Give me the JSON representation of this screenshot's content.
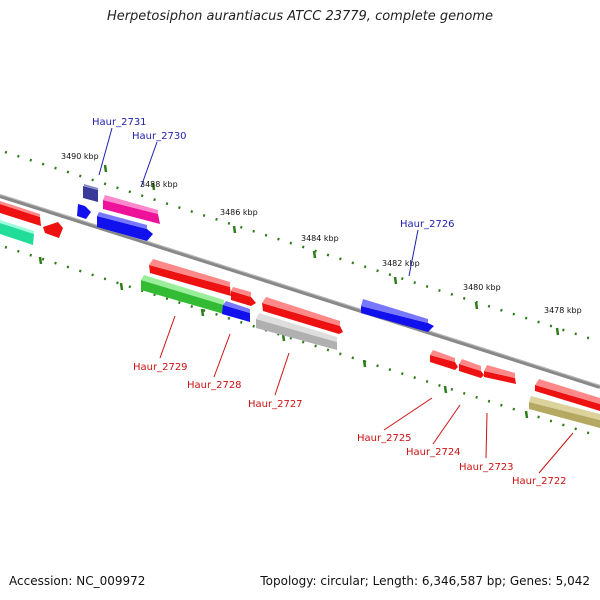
{
  "title": "Herpetosiphon aurantiacus ATCC 23779, complete genome",
  "footer": {
    "accession": "Accession: NC_009972",
    "topology": "Topology: circular; Length: 6,346,587 bp; Genes: 5,042"
  },
  "colors": {
    "backbone": "#808080",
    "tick": "#2e7d1a",
    "label_top": "#1f1fb0",
    "label_bottom": "#cc1111"
  },
  "position_labels": [
    "3490 kbp",
    "3488 kbp",
    "3486 kbp",
    "3484 kbp",
    "3482 kbp",
    "3480 kbp",
    "3478 kbp"
  ],
  "gene_labels_top": [
    "Haur_2731",
    "Haur_2730",
    "Haur_2726"
  ],
  "gene_labels_bottom": [
    "Haur_2729",
    "Haur_2728",
    "Haur_2727",
    "Haur_2725",
    "Haur_2724",
    "Haur_2723",
    "Haur_2722"
  ],
  "gene_colors": {
    "red": "#ee1111",
    "blue": "#1111ee",
    "navy": "#3a3a99",
    "magenta": "#ee1199",
    "green": "#33bb33",
    "teal": "#22dd99",
    "gray": "#b0b0b0",
    "olive": "#b5a860"
  }
}
